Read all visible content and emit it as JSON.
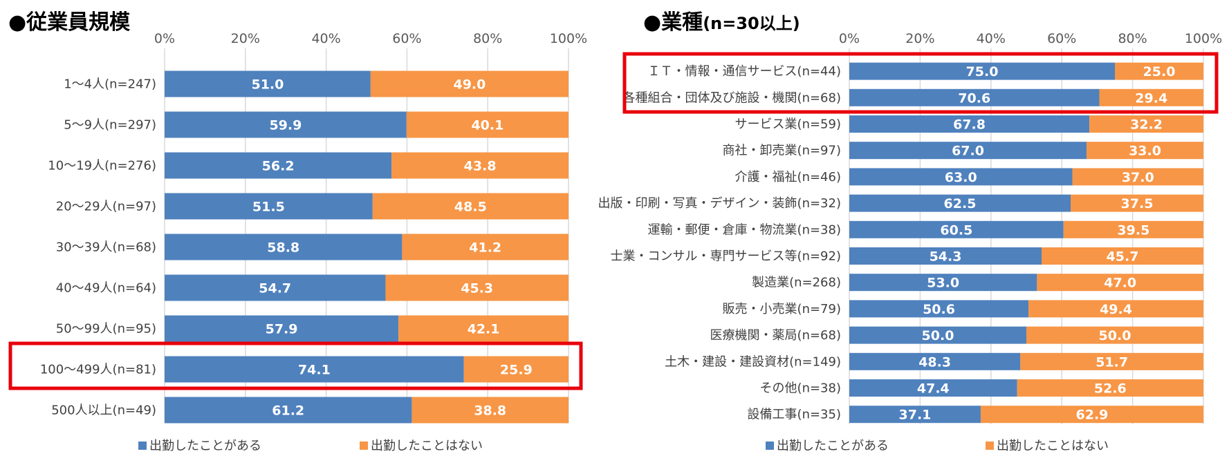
{
  "colors": {
    "series1": "#4f81bd",
    "series2": "#f79646",
    "grid": "#d9d9d9",
    "highlight": "#e8000b"
  },
  "chart_data": [
    {
      "type": "bar",
      "orientation": "horizontal",
      "stacked": true,
      "title": "●従業員規模",
      "xlim": [
        0,
        100
      ],
      "ticks": [
        "0%",
        "20%",
        "40%",
        "60%",
        "80%",
        "100%"
      ],
      "grid": true,
      "legend_position": "bottom",
      "categories": [
        "1～4人(n=247)",
        "5～9人(n=297)",
        "10～19人(n=276)",
        "20～29人(n=97)",
        "30～39人(n=68)",
        "40～49人(n=64)",
        "50～99人(n=95)",
        "100～499人(n=81)",
        "500人以上(n=49)"
      ],
      "series": [
        {
          "name": "出勤したことがある",
          "values": [
            51.0,
            59.9,
            56.2,
            51.5,
            58.8,
            54.7,
            57.9,
            74.1,
            61.2
          ],
          "labels": [
            "51.0",
            "59.9",
            "56.2",
            "51.5",
            "58.8",
            "54.7",
            "57.9",
            "74.1",
            "61.2"
          ]
        },
        {
          "name": "出勤したことはない",
          "values": [
            49.0,
            40.1,
            43.8,
            48.5,
            41.2,
            45.3,
            42.1,
            25.9,
            38.8
          ],
          "labels": [
            "49.0",
            "40.1",
            "43.8",
            "48.5",
            "41.2",
            "45.3",
            "42.1",
            "25.9",
            "38.8"
          ]
        }
      ],
      "highlighted_categories": [
        "100～499人(n=81)"
      ]
    },
    {
      "type": "bar",
      "orientation": "horizontal",
      "stacked": true,
      "title": "●業種",
      "title_suffix": "(n=30以上)",
      "xlim": [
        0,
        100
      ],
      "ticks": [
        "0%",
        "20%",
        "40%",
        "60%",
        "80%",
        "100%"
      ],
      "grid": true,
      "legend_position": "bottom",
      "categories": [
        "ＩＴ・情報・通信サービス(n=44)",
        "各種組合・団体及び施設・機関(n=68)",
        "サービス業(n=59)",
        "商社・卸売業(n=97)",
        "介護・福祉(n=46)",
        "出版・印刷・写真・デザイン・装飾(n=32)",
        "運輸・郵便・倉庫・物流業(n=38)",
        "士業・コンサル・専門サービス等(n=92)",
        "製造業(n=268)",
        "販売・小売業(n=79)",
        "医療機関・薬局(n=68)",
        "土木・建設・建設資材(n=149)",
        "その他(n=38)",
        "設備工事(n=35)"
      ],
      "series": [
        {
          "name": "出勤したことがある",
          "values": [
            75.0,
            70.6,
            67.8,
            67.0,
            63.0,
            62.5,
            60.5,
            54.3,
            53.0,
            50.6,
            50.0,
            48.3,
            47.4,
            37.1
          ],
          "labels": [
            "75.0",
            "70.6",
            "67.8",
            "67.0",
            "63.0",
            "62.5",
            "60.5",
            "54.3",
            "53.0",
            "50.6",
            "50.0",
            "48.3",
            "47.4",
            "37.1"
          ]
        },
        {
          "name": "出勤したことはない",
          "values": [
            25.0,
            29.4,
            32.2,
            33.0,
            37.0,
            37.5,
            39.5,
            45.7,
            47.0,
            49.4,
            50.0,
            51.7,
            52.6,
            62.9
          ],
          "labels": [
            "25.0",
            "29.4",
            "32.2",
            "33.0",
            "37.0",
            "37.5",
            "39.5",
            "45.7",
            "47.0",
            "49.4",
            "50.0",
            "51.7",
            "52.6",
            "62.9"
          ]
        }
      ],
      "highlighted_categories": [
        "ＩＴ・情報・通信サービス(n=44)",
        "各種組合・団体及び施設・機関(n=68)"
      ]
    }
  ]
}
